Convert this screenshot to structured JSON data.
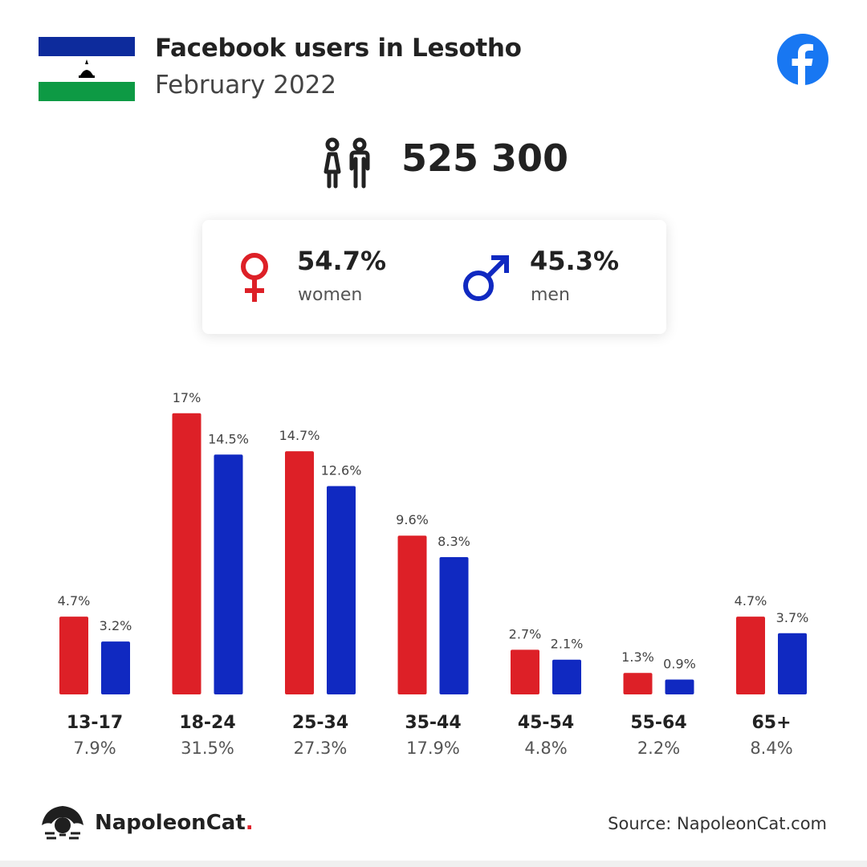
{
  "header": {
    "title": "Facebook users in Lesotho",
    "subtitle": "February 2022"
  },
  "total_users": "525 300",
  "gender": {
    "women": {
      "pct": "54.7%",
      "label": "women"
    },
    "men": {
      "pct": "45.3%",
      "label": "men"
    }
  },
  "colors": {
    "women": "#dd2027",
    "men": "#1029c1",
    "flag_blue": "#0d2b9c",
    "flag_green": "#0d9a44",
    "facebook": "#1877f2"
  },
  "chart_data": {
    "type": "bar",
    "categories": [
      "13-17",
      "18-24",
      "25-34",
      "35-44",
      "45-54",
      "55-64",
      "65+"
    ],
    "totals": [
      "7.9%",
      "31.5%",
      "27.3%",
      "17.9%",
      "4.8%",
      "2.2%",
      "8.4%"
    ],
    "series": [
      {
        "key": "women",
        "values": [
          4.7,
          17,
          14.7,
          9.6,
          2.7,
          1.3,
          4.7
        ],
        "labels": [
          "4.7%",
          "17%",
          "14.7%",
          "9.6%",
          "2.7%",
          "1.3%",
          "4.7%"
        ]
      },
      {
        "key": "men",
        "values": [
          3.2,
          14.5,
          12.6,
          8.3,
          2.1,
          0.9,
          3.7
        ],
        "labels": [
          "3.2%",
          "14.5%",
          "12.6%",
          "8.3%",
          "2.1%",
          "0.9%",
          "3.7%"
        ]
      }
    ],
    "grid": false,
    "legend": "none"
  },
  "footer": {
    "brand": "NapoleonCat",
    "brand_dot": ".",
    "source": "Source: NapoleonCat.com"
  }
}
